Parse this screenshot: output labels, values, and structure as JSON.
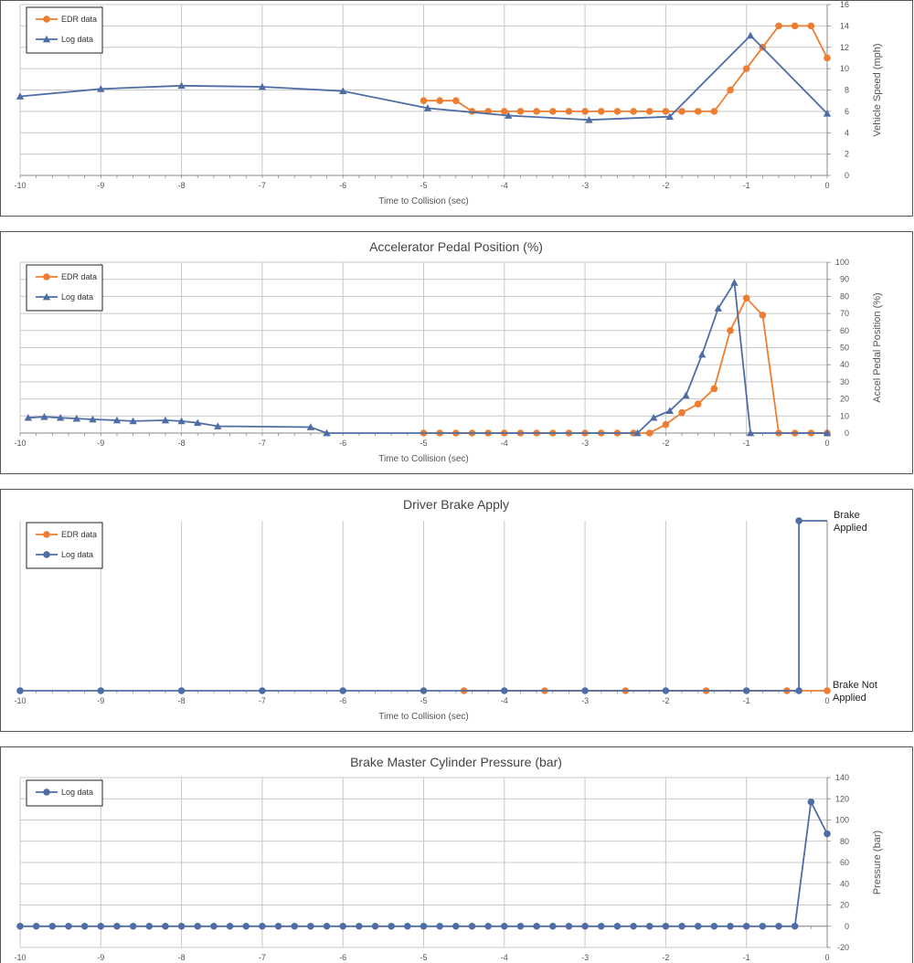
{
  "colors": {
    "edr": "#ED7D31",
    "log": "#4F6DA5",
    "grid": "#C8C8C8",
    "frame": "#555555"
  },
  "chart_data": [
    {
      "type": "line",
      "title": "",
      "xlabel": "Time to Collision (sec)",
      "ylabel": "Vehicle Speed (mph)",
      "xlim": [
        -10,
        0
      ],
      "ylim": [
        0,
        16
      ],
      "ytick_step": 2,
      "x_ticks": [
        "-10",
        "-9",
        "-8",
        "-7",
        "-6",
        "-5",
        "-4",
        "-3",
        "-2",
        "-1",
        "0"
      ],
      "grid": true,
      "legend_position": "top-left",
      "series": [
        {
          "name": "EDR data",
          "color": "#ED7D31",
          "marker": "circle",
          "x": [
            -5.0,
            -4.8,
            -4.6,
            -4.4,
            -4.2,
            -4.0,
            -3.8,
            -3.6,
            -3.4,
            -3.2,
            -3.0,
            -2.8,
            -2.6,
            -2.4,
            -2.2,
            -2.0,
            -1.8,
            -1.6,
            -1.4,
            -1.2,
            -1.0,
            -0.8,
            -0.6,
            -0.4,
            -0.2,
            0.0
          ],
          "y": [
            7,
            7,
            7,
            6,
            6,
            6,
            6,
            6,
            6,
            6,
            6,
            6,
            6,
            6,
            6,
            6,
            6,
            6,
            6,
            8,
            10,
            12,
            14,
            14,
            14,
            11
          ]
        },
        {
          "name": "Log data",
          "color": "#4F6DA5",
          "marker": "triangle",
          "x": [
            -10.0,
            -9.0,
            -8.0,
            -7.0,
            -6.0,
            -4.95,
            -3.95,
            -2.95,
            -1.95,
            -0.95,
            0.0
          ],
          "y": [
            7.4,
            8.1,
            8.4,
            8.3,
            7.9,
            6.3,
            5.6,
            5.2,
            5.5,
            13.1,
            5.8
          ]
        }
      ]
    },
    {
      "type": "line",
      "title": "Accelerator Pedal Position (%)",
      "xlabel": "Time to Collision (sec)",
      "ylabel": "Accel Pedal Position (%)",
      "xlim": [
        -10,
        0
      ],
      "ylim": [
        0,
        100
      ],
      "ytick_step": 10,
      "x_ticks": [
        "-10",
        "-9",
        "-8",
        "-7",
        "-6",
        "-5",
        "-4",
        "-3",
        "-2",
        "-1",
        "0"
      ],
      "grid": true,
      "legend_position": "top-left",
      "series": [
        {
          "name": "EDR data",
          "color": "#ED7D31",
          "marker": "circle",
          "x": [
            -5.0,
            -4.8,
            -4.6,
            -4.4,
            -4.2,
            -4.0,
            -3.8,
            -3.6,
            -3.4,
            -3.2,
            -3.0,
            -2.8,
            -2.6,
            -2.4,
            -2.2,
            -2.0,
            -1.8,
            -1.6,
            -1.4,
            -1.2,
            -1.0,
            -0.8,
            -0.6,
            -0.4,
            -0.2,
            0.0
          ],
          "y": [
            0,
            0,
            0,
            0,
            0,
            0,
            0,
            0,
            0,
            0,
            0,
            0,
            0,
            0,
            0,
            5,
            12,
            17,
            26,
            60,
            79,
            69,
            0,
            0,
            0,
            0
          ]
        },
        {
          "name": "Log data",
          "color": "#4F6DA5",
          "marker": "triangle",
          "x": [
            -9.9,
            -9.7,
            -9.5,
            -9.3,
            -9.1,
            -8.8,
            -8.6,
            -8.2,
            -8.0,
            -7.8,
            -7.55,
            -6.4,
            -6.2,
            -2.35,
            -2.15,
            -1.95,
            -1.75,
            -1.55,
            -1.35,
            -1.15,
            -0.95,
            0.0
          ],
          "y": [
            9,
            9.5,
            9,
            8.5,
            8,
            7.5,
            7,
            7.5,
            7,
            6,
            4,
            3.5,
            0,
            0,
            9,
            13,
            22,
            46,
            73,
            88,
            0,
            0
          ]
        }
      ]
    },
    {
      "type": "line",
      "title": "Driver Brake Apply",
      "xlabel": "Time to Collision (sec)",
      "ylabel": "",
      "xlim": [
        -10,
        0
      ],
      "ylim": [
        0,
        1
      ],
      "state_labels": {
        "on_line1": "Brake",
        "on_line2": "Applied",
        "off_line1": "Brake Not",
        "off_line2": "Applied"
      },
      "x_ticks": [
        "-10",
        "-9",
        "-8",
        "-7",
        "-6",
        "-5",
        "-4",
        "-3",
        "-2",
        "-1",
        "0"
      ],
      "grid": true,
      "legend_position": "top-left",
      "series": [
        {
          "name": "EDR data",
          "color": "#ED7D31",
          "marker": "circle",
          "x": [
            -4.5,
            -3.5,
            -2.5,
            -1.5,
            -0.5,
            0.0
          ],
          "y": [
            0,
            0,
            0,
            0,
            0,
            0
          ]
        },
        {
          "name": "Log data",
          "color": "#4F6DA5",
          "marker": "circle",
          "x": [
            -10,
            -9,
            -8,
            -7,
            -6,
            -5,
            -4,
            -3,
            -2,
            -1,
            -0.35,
            -0.35,
            0.0
          ],
          "y": [
            0,
            0,
            0,
            0,
            0,
            0,
            0,
            0,
            0,
            0,
            0,
            1,
            1
          ],
          "marker_x": [
            -10,
            -9,
            -8,
            -7,
            -6,
            -5,
            -4,
            -3,
            -2,
            -1,
            -0.35,
            -0.35
          ],
          "marker_y": [
            0,
            0,
            0,
            0,
            0,
            0,
            0,
            0,
            0,
            0,
            0,
            1
          ]
        }
      ]
    },
    {
      "type": "line",
      "title": "Brake Master Cylinder Pressure (bar)",
      "xlabel": "",
      "ylabel": "Pressure (bar)",
      "xlim": [
        -10,
        0
      ],
      "ylim": [
        -20,
        140
      ],
      "ytick_step": 20,
      "x_ticks": [
        "-10",
        "-9",
        "-8",
        "-7",
        "-6",
        "-5",
        "-4",
        "-3",
        "-2",
        "-1",
        "0"
      ],
      "grid": true,
      "legend_position": "top-left",
      "series": [
        {
          "name": "Log data",
          "color": "#4F6DA5",
          "marker": "circle",
          "x": [
            -10.0,
            -9.8,
            -9.6,
            -9.4,
            -9.2,
            -9.0,
            -8.8,
            -8.6,
            -8.4,
            -8.2,
            -8.0,
            -7.8,
            -7.6,
            -7.4,
            -7.2,
            -7.0,
            -6.8,
            -6.6,
            -6.4,
            -6.2,
            -6.0,
            -5.8,
            -5.6,
            -5.4,
            -5.2,
            -5.0,
            -4.8,
            -4.6,
            -4.4,
            -4.2,
            -4.0,
            -3.8,
            -3.6,
            -3.4,
            -3.2,
            -3.0,
            -2.8,
            -2.6,
            -2.4,
            -2.2,
            -2.0,
            -1.8,
            -1.6,
            -1.4,
            -1.2,
            -1.0,
            -0.8,
            -0.6,
            -0.4,
            -0.2,
            0.0
          ],
          "y": [
            0,
            0,
            0,
            0,
            0,
            0,
            0,
            0,
            0,
            0,
            0,
            0,
            0,
            0,
            0,
            0,
            0,
            0,
            0,
            0,
            0,
            0,
            0,
            0,
            0,
            0,
            0,
            0,
            0,
            0,
            0,
            0,
            0,
            0,
            0,
            0,
            0,
            0,
            0,
            0,
            0,
            0,
            0,
            0,
            0,
            0,
            0,
            0,
            0,
            117,
            87
          ]
        }
      ]
    }
  ]
}
